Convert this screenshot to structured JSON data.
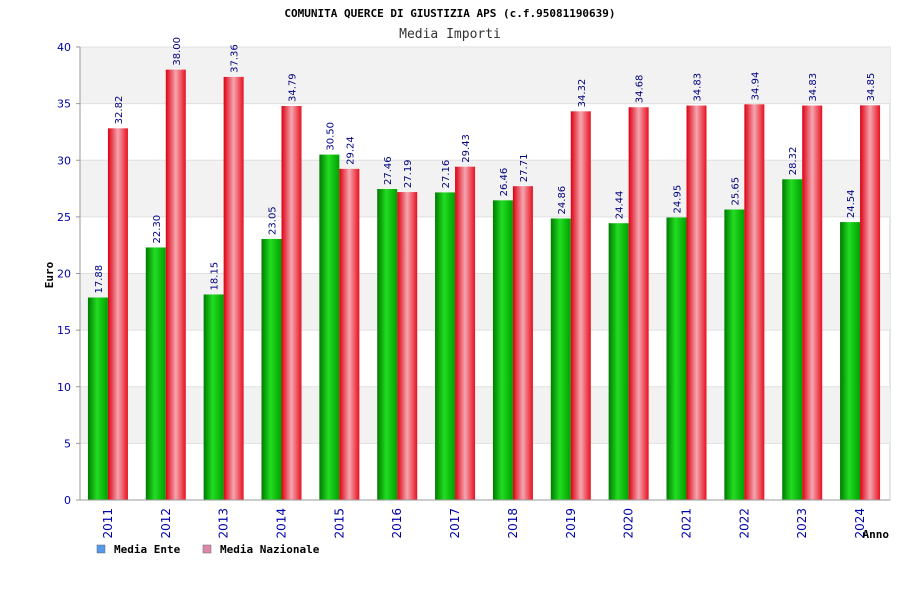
{
  "chart_data": {
    "type": "bar",
    "title": "COMUNITA QUERCE DI GIUSTIZIA APS (c.f.95081190639)",
    "subtitle": "Media Importi",
    "xlabel": "Anno",
    "ylabel": "Euro",
    "ylim": [
      0,
      40
    ],
    "yticks": [
      0,
      5,
      10,
      15,
      20,
      25,
      30,
      35,
      40
    ],
    "categories": [
      "2011",
      "2012",
      "2013",
      "2014",
      "2015",
      "2016",
      "2017",
      "2018",
      "2019",
      "2020",
      "2021",
      "2022",
      "2023",
      "2024"
    ],
    "series": [
      {
        "name": "Media Ente",
        "color": "#00bb00",
        "legend_color": "#5599ee",
        "values": [
          17.88,
          22.3,
          18.15,
          23.05,
          30.5,
          27.46,
          27.16,
          26.46,
          24.86,
          24.44,
          24.95,
          25.65,
          28.32,
          24.54
        ],
        "labels": [
          "17.88",
          "22.30",
          "18.15",
          "23.05",
          "30.50",
          "27.46",
          "27.16",
          "26.46",
          "24.86",
          "24.44",
          "24.95",
          "25.65",
          "28.32",
          "24.54"
        ]
      },
      {
        "name": "Media Nazionale",
        "color": "#ee1122",
        "legend_color": "#dd88aa",
        "values": [
          32.82,
          38.0,
          37.36,
          34.79,
          29.24,
          27.19,
          29.43,
          27.71,
          34.32,
          34.68,
          34.83,
          34.94,
          34.83,
          34.85
        ],
        "labels": [
          "32.82",
          "38.00",
          "37.36",
          "34.79",
          "29.24",
          "27.19",
          "29.43",
          "27.71",
          "34.32",
          "34.68",
          "34.83",
          "34.94",
          "34.83",
          "34.85"
        ]
      }
    ],
    "grid": true,
    "legend_position": "bottom-left"
  }
}
